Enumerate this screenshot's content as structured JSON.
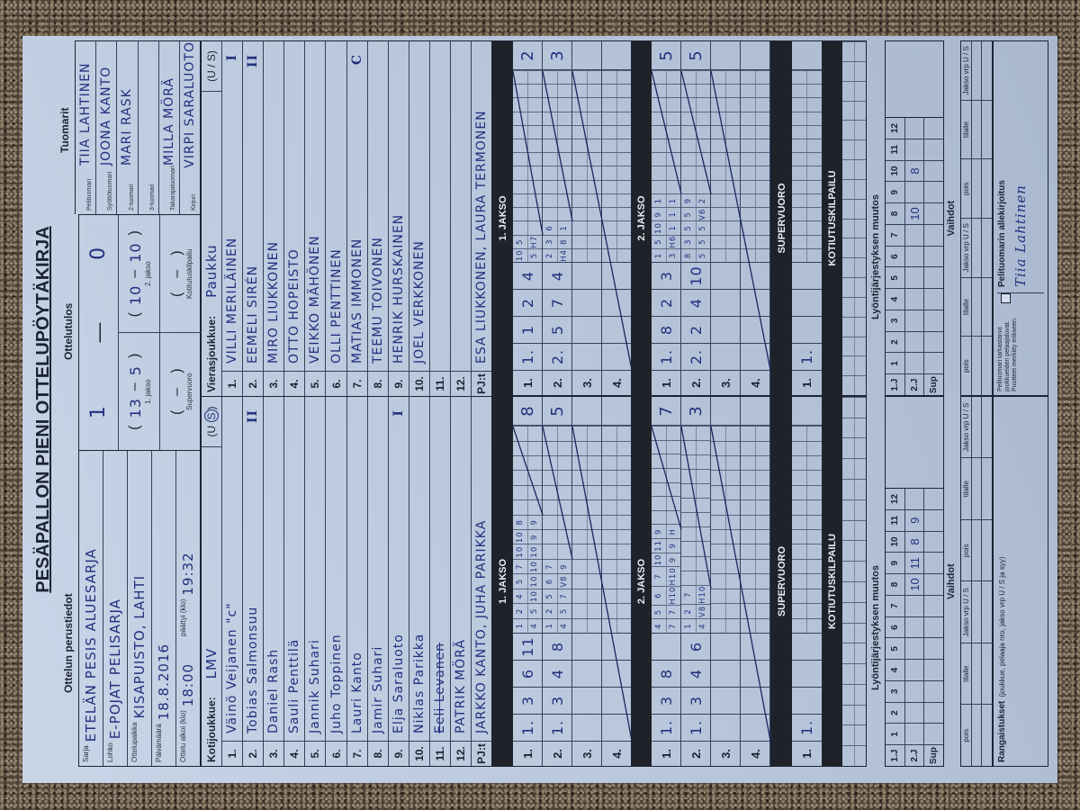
{
  "title": "PESÄPALLON PIENI OTTELUPÖYTÄKIRJA",
  "basic_info": {
    "heading": "Ottelun perustiedot",
    "fields": [
      {
        "label": "Sarja",
        "value": "ETELÄN PESIS ALUESARJA"
      },
      {
        "label": "Lohko",
        "value": "E-POJAT PELISARJA"
      },
      {
        "label": "Ottelupaikka",
        "value": "KISAPUISTO, LAHTI"
      },
      {
        "label": "Päivämäärä",
        "value": "18.8.2016"
      }
    ],
    "start_label": "Ottelu alkoi (klo)",
    "start": "18:00",
    "end_label": "päättyi (klo)",
    "end": "19:32"
  },
  "result": {
    "heading": "Ottelutulos",
    "home": "1",
    "away": "0",
    "periods": [
      {
        "label": "1. jakso",
        "home": "13",
        "away": "5"
      },
      {
        "label": "2. jakso",
        "home": "10",
        "away": "10"
      },
      {
        "label": "Supervuoro",
        "home": "",
        "away": ""
      },
      {
        "label": "Kotitutuskilpailu",
        "home": "",
        "away": ""
      }
    ]
  },
  "referees": {
    "heading": "Tuomarit",
    "rows": [
      {
        "label": "Pelituomari",
        "value": "TIIA LAHTINEN"
      },
      {
        "label": "Syöttötuomari",
        "value": "JOONA KANTO"
      },
      {
        "label": "2-tuomari",
        "value": "MARI RASK"
      },
      {
        "label": "3-tuomari",
        "value": ""
      },
      {
        "label": "Takarajatuomari",
        "value": "MILLA MÖRÄ"
      },
      {
        "label": "Kirjuri",
        "value": "VIRPI SARALUOTO"
      }
    ]
  },
  "home": {
    "label": "Kotijoukkue:",
    "name": "LMV",
    "us_u": "U",
    "us_s": "S",
    "us_selected": "S",
    "players": [
      {
        "no": "1.",
        "name": "Väinö Veijanen \"c\"",
        "mark": ""
      },
      {
        "no": "2.",
        "name": "Tobias Salmonsuu",
        "mark": "II"
      },
      {
        "no": "3.",
        "name": "Daniel Rash",
        "mark": ""
      },
      {
        "no": "4.",
        "name": "Sauli Penttilä",
        "mark": ""
      },
      {
        "no": "5.",
        "name": "Jannik Suhari",
        "mark": ""
      },
      {
        "no": "6.",
        "name": "Juho Toppinen",
        "mark": ""
      },
      {
        "no": "7.",
        "name": "Lauri Kanto",
        "mark": ""
      },
      {
        "no": "8.",
        "name": "Jamir Suhari",
        "mark": ""
      },
      {
        "no": "9.",
        "name": "Elja Saraluoto",
        "mark": "I"
      },
      {
        "no": "10.",
        "name": "Niklas Parikka",
        "mark": ""
      },
      {
        "no": "11.",
        "name": "Eeli Levanen",
        "mark": "",
        "struck": true
      },
      {
        "no": "12.",
        "name": "PATRIK MÖRÄ",
        "mark": ""
      }
    ],
    "coaches_label": "PJ:t",
    "coaches": "JARKKO KANTO, JUHA PARIKKA",
    "periods": [
      {
        "title": "1. JAKSO",
        "rows": [
          {
            "label": "1.",
            "cells": [
              "1.",
              "3",
              "6",
              "11"
            ],
            "top": [
              "1",
              "2",
              "4",
              "5",
              "7",
              "10",
              "10",
              "8"
            ],
            "bottom": [
              "4",
              "5",
              "10",
              "10",
              "10",
              "10",
              "9",
              "9"
            ],
            "score": "8"
          },
          {
            "label": "2.",
            "cells": [
              "1.",
              "3",
              "4",
              "8"
            ],
            "top": [
              "1",
              "2",
              "5",
              "6",
              "7"
            ],
            "bottom": [
              "4",
              "5",
              "7",
              "V8",
              "9"
            ],
            "score": "5"
          },
          {
            "label": "3.",
            "cells": [
              "",
              "",
              "",
              ""
            ],
            "top": [],
            "bottom": [],
            "score": ""
          },
          {
            "label": "4.",
            "cells": [
              "",
              "",
              "",
              ""
            ],
            "top": [],
            "bottom": [],
            "score": ""
          }
        ]
      },
      {
        "title": "2. JAKSO",
        "rows": [
          {
            "label": "1.",
            "cells": [
              "1.",
              "3",
              "8",
              ""
            ],
            "top": [
              "4",
              "5",
              "6",
              "7",
              "10",
              "11",
              "9"
            ],
            "bottom": [
              "7",
              "7",
              "H10",
              "H10",
              "9",
              "9",
              "H"
            ],
            "score": "7"
          },
          {
            "label": "2.",
            "cells": [
              "1.",
              "3",
              "4",
              "6"
            ],
            "top": [
              "1",
              "2",
              "7"
            ],
            "bottom": [
              "4",
              "V8",
              "H10"
            ],
            "score": "3"
          },
          {
            "label": "3.",
            "cells": [
              "",
              "",
              "",
              ""
            ],
            "top": [],
            "bottom": [],
            "score": ""
          },
          {
            "label": "4.",
            "cells": [
              "",
              "",
              "",
              ""
            ],
            "top": [],
            "bottom": [],
            "score": ""
          }
        ]
      }
    ],
    "super": {
      "title": "SUPERVUORO",
      "rows": [
        {
          "label": "1.",
          "cells": [
            "1.",
            "",
            "",
            ""
          ],
          "top": [],
          "bottom": [],
          "score": ""
        }
      ]
    },
    "home_run": {
      "title": "KOTIUTUSKILPAILU"
    },
    "lineup_changes": {
      "heading": "Lyöntijärjestyksen muutos",
      "columns": [
        "1",
        "2",
        "3",
        "4",
        "5",
        "6",
        "7",
        "8",
        "9",
        "10",
        "11",
        "12"
      ],
      "rows": [
        {
          "label": "1.J",
          "cells": [
            "",
            "",
            "",
            "",
            "",
            "",
            "",
            "",
            "",
            "",
            "",
            ""
          ]
        },
        {
          "label": "2.J",
          "cells": [
            "",
            "",
            "",
            "",
            "",
            "",
            "",
            "10",
            "11",
            "8",
            "9",
            ""
          ]
        },
        {
          "label": "Sup",
          "cells": [
            "",
            "",
            "",
            "",
            "",
            "",
            "",
            "",
            "",
            "",
            "",
            ""
          ]
        }
      ]
    },
    "substitutions": {
      "heading": "Vaihdot",
      "columns": [
        "pois",
        "tilalle",
        "Jakso vrp U / S",
        "pois",
        "tilalle",
        "Jakso vrp U / S"
      ]
    },
    "penalties_label": "Rangaistukset",
    "penalties_hint": "(joukkue, pelaaja nro, jakso vrp U / S ja syy)"
  },
  "away": {
    "label": "Vierasjoukkue:",
    "name": "Paukku",
    "us": "(U / S)",
    "players": [
      {
        "no": "1.",
        "name": "VILLI MERILÄINEN",
        "mark": "I"
      },
      {
        "no": "2.",
        "name": "EEMELI SIRÉN",
        "mark": "II"
      },
      {
        "no": "3.",
        "name": "MIRO LIUKKONEN",
        "mark": ""
      },
      {
        "no": "4.",
        "name": "OTTO HOPEISTO",
        "mark": ""
      },
      {
        "no": "5.",
        "name": "VEIKKO MÄHÖNEN",
        "mark": ""
      },
      {
        "no": "6.",
        "name": "OLLI PENTTINEN",
        "mark": ""
      },
      {
        "no": "7.",
        "name": "MATIAS IMMONEN",
        "mark": "C"
      },
      {
        "no": "8.",
        "name": "TEEMU TOIVONEN",
        "mark": ""
      },
      {
        "no": "9.",
        "name": "HENRIK HURSKAINEN",
        "mark": ""
      },
      {
        "no": "10.",
        "name": "JOEL VERKKONEN",
        "mark": ""
      },
      {
        "no": "11.",
        "name": "",
        "mark": ""
      },
      {
        "no": "12.",
        "name": "",
        "mark": ""
      }
    ],
    "coaches_label": "PJ:t",
    "coaches": "ESA LIUKKONEN, LAURA TERMONEN",
    "periods": [
      {
        "title": "1. JAKSO",
        "rows": [
          {
            "label": "1.",
            "cells": [
              "1.",
              "1",
              "2",
              "4"
            ],
            "top": [
              "10",
              "5"
            ],
            "bottom": [
              "5",
              "H7"
            ],
            "score": "2"
          },
          {
            "label": "2.",
            "cells": [
              "2.",
              "5",
              "7",
              "4"
            ],
            "top": [
              "2",
              "3",
              "6"
            ],
            "bottom": [
              "H4",
              "8",
              "1"
            ],
            "score": "3"
          },
          {
            "label": "3.",
            "cells": [
              "",
              "",
              "",
              ""
            ],
            "top": [],
            "bottom": [],
            "score": ""
          },
          {
            "label": "4.",
            "cells": [
              "",
              "",
              "",
              ""
            ],
            "top": [],
            "bottom": [],
            "score": ""
          }
        ]
      },
      {
        "title": "2. JAKSO",
        "rows": [
          {
            "label": "1.",
            "cells": [
              "1.",
              "8",
              "2",
              "3"
            ],
            "top": [
              "1",
              "5",
              "10",
              "9",
              "1"
            ],
            "bottom": [
              "3",
              "H6",
              "1",
              "1",
              "1"
            ],
            "score": "5"
          },
          {
            "label": "2.",
            "cells": [
              "2.",
              "2",
              "4",
              "10"
            ],
            "top": [
              "8",
              "3",
              "5",
              "5",
              "9"
            ],
            "bottom": [
              "5",
              "5",
              "5",
              "V6",
              "2"
            ],
            "score": "5"
          },
          {
            "label": "3.",
            "cells": [
              "",
              "",
              "",
              ""
            ],
            "top": [],
            "bottom": [],
            "score": ""
          },
          {
            "label": "4.",
            "cells": [
              "",
              "",
              "",
              ""
            ],
            "top": [],
            "bottom": [],
            "score": ""
          }
        ]
      }
    ],
    "super": {
      "title": "SUPERVUORO",
      "rows": [
        {
          "label": "1.",
          "cells": [
            "1.",
            "",
            "",
            ""
          ],
          "top": [],
          "bottom": [],
          "score": ""
        }
      ]
    },
    "home_run": {
      "title": "KOTIUTUSKILPAILU"
    },
    "lineup_changes": {
      "heading": "Lyöntijärjestyksen muutos",
      "columns": [
        "1",
        "2",
        "3",
        "4",
        "5",
        "6",
        "7",
        "8",
        "9",
        "10",
        "11",
        "12"
      ],
      "rows": [
        {
          "label": "1.J",
          "cells": [
            "",
            "",
            "",
            "",
            "",
            "",
            "",
            "",
            "",
            "",
            "",
            ""
          ]
        },
        {
          "label": "2.J",
          "cells": [
            "",
            "",
            "",
            "",
            "",
            "",
            "",
            "10",
            "",
            "8",
            "",
            ""
          ]
        },
        {
          "label": "Sup",
          "cells": [
            "",
            "",
            "",
            "",
            "",
            "",
            "",
            "",
            "",
            "",
            "",
            ""
          ]
        }
      ]
    },
    "substitutions": {
      "heading": "Vaihdot",
      "columns": [
        "pois",
        "tilalle",
        "Jakso vrp U / S",
        "pois",
        "tilalle",
        "Jakso vrp U / S"
      ]
    },
    "check_text": "Pelituomari tarkastanut joukkueiden pelaajaluvat. Puutteet merkitty erikseen.",
    "check_checked": false,
    "signature_label": "Pelituomarin allekirjoitus",
    "signature": "Tiia Lahtinen"
  },
  "colors": {
    "paper": "#b9c7dc",
    "ink": "#22307e",
    "bars": "#1f2329"
  }
}
